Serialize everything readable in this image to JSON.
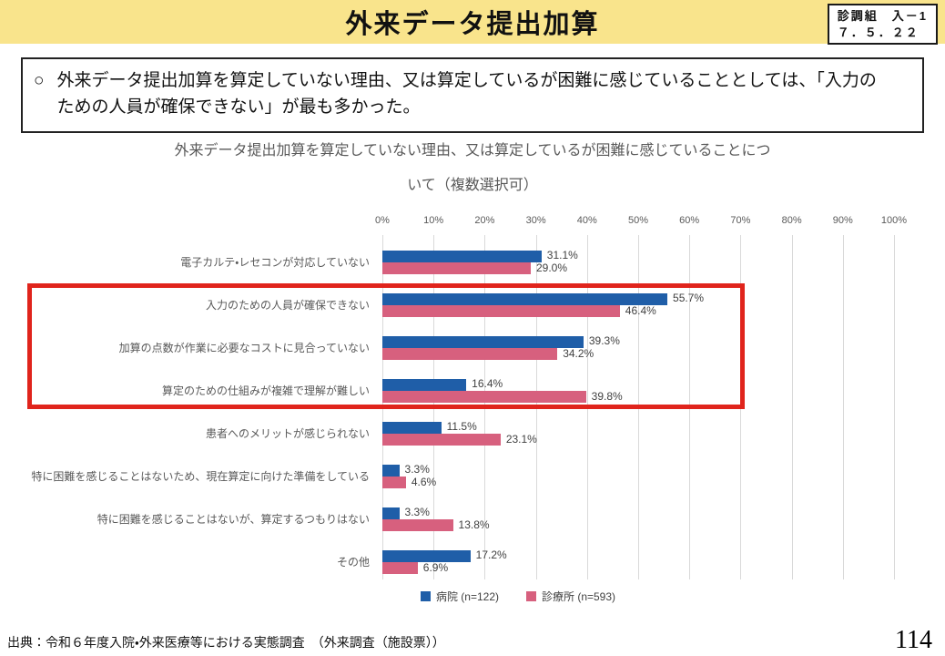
{
  "header": {
    "title": "外来データ提出加算",
    "ref_box": {
      "line1": "診調組　入－1",
      "line2": "７．５．２２"
    }
  },
  "summary": {
    "marker": "○",
    "text": "外来データ提出加算を算定していない理由、又は算定しているが困難に感じていることとしては、「入力のための人員が確保できない」が最も多かった。"
  },
  "chart_data": {
    "type": "bar",
    "orientation": "horizontal",
    "title_lines": [
      "外来データ提出加算を算定していない理由、又は算定しているが困難に感じていることにつ",
      "いて（複数選択可）"
    ],
    "categories": [
      "電子カルテ・レセコンが対応していない",
      "入力のための人員が確保できない",
      "加算の点数が作業に必要なコストに見合っていない",
      "算定のための仕組みが複雑で理解が難しい",
      "患者へのメリットが感じられない",
      "特に困難を感じることはないため、現在算定に向けた準備をしている",
      "特に困難を感じることはないが、算定するつもりはない",
      "その他"
    ],
    "series": [
      {
        "name": "病院 (n=122)",
        "color": "#1F5EA8",
        "values": [
          31.1,
          55.7,
          39.3,
          16.4,
          11.5,
          3.3,
          3.3,
          17.2
        ]
      },
      {
        "name": "診療所 (n=593)",
        "color": "#D7607E",
        "values": [
          29.0,
          46.4,
          34.2,
          39.8,
          23.1,
          4.6,
          13.8,
          6.9
        ]
      }
    ],
    "value_suffix": "%",
    "xlim": [
      0,
      100
    ],
    "ticks": [
      "0%",
      "10%",
      "20%",
      "30%",
      "40%",
      "50%",
      "60%",
      "70%",
      "80%",
      "90%",
      "100%"
    ],
    "grid": true,
    "gridline_color": "#D9D9D9",
    "legend_position": "bottom",
    "highlight": {
      "color": "#E0241C",
      "rows": [
        "入力のための人員が確保できない",
        "加算の点数が作業に必要なコストに見合っていない",
        "算定のための仕組みが複雑で理解が難しい"
      ]
    }
  },
  "footer": {
    "source": "出典：令和６年度入院・外来医療等における実態調査　（外来調査（施設票））",
    "page_number": "114"
  }
}
